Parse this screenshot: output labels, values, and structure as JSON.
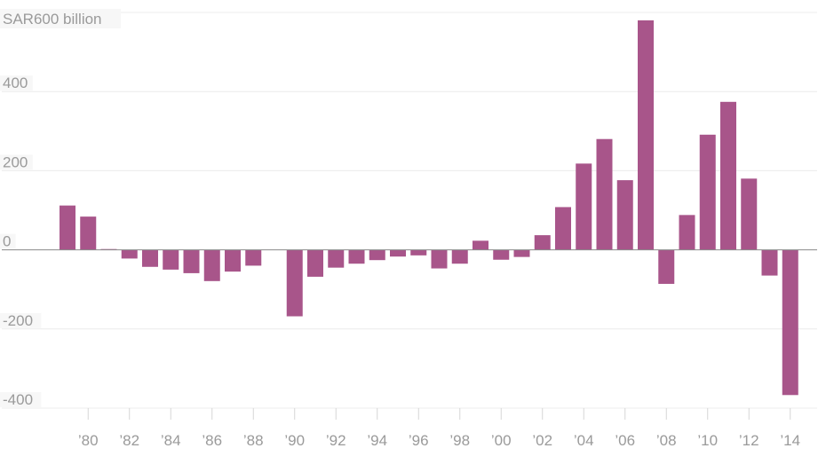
{
  "chart_data": {
    "type": "bar",
    "title": "",
    "xlabel": "",
    "ylabel": "",
    "unit_label": "SAR600 billion",
    "ylim": [
      -400,
      600
    ],
    "y_ticks": [
      {
        "value": 400,
        "label": "400"
      },
      {
        "value": 200,
        "label": "200"
      },
      {
        "value": 0,
        "label": "0"
      },
      {
        "value": -200,
        "label": "-200"
      },
      {
        "value": -400,
        "label": "-400"
      }
    ],
    "x_tick_labels": [
      "’80",
      "’82",
      "’84",
      "’86",
      "’88",
      "’90",
      "’92",
      "’94",
      "’96",
      "’98",
      "’00",
      "’02",
      "’04",
      "’06",
      "’08",
      "’10",
      "’12",
      "’14"
    ],
    "x_tick_years": [
      1980,
      1982,
      1984,
      1986,
      1988,
      1990,
      1992,
      1994,
      1996,
      1998,
      2000,
      2002,
      2004,
      2006,
      2008,
      2010,
      2012,
      2014
    ],
    "bar_color": "#a8558a",
    "grid": true,
    "legend": "none",
    "years": [
      1979,
      1980,
      1981,
      1982,
      1983,
      1984,
      1985,
      1986,
      1987,
      1988,
      1989,
      1990,
      1991,
      1992,
      1993,
      1994,
      1995,
      1996,
      1997,
      1998,
      1999,
      2000,
      2001,
      2002,
      2003,
      2004,
      2005,
      2006,
      2007,
      2008,
      2009,
      2010,
      2011,
      2012,
      2013,
      2014,
      2015
    ],
    "values": [
      112,
      84,
      2,
      -22,
      -43,
      -50,
      -59,
      -79,
      -55,
      -40,
      0,
      -168,
      -68,
      -45,
      -35,
      -26,
      -17,
      -14,
      -47,
      -35,
      23,
      -25,
      -18,
      37,
      108,
      218,
      280,
      176,
      580,
      -86,
      88,
      291,
      374,
      180,
      -65,
      -367,
      null
    ]
  }
}
